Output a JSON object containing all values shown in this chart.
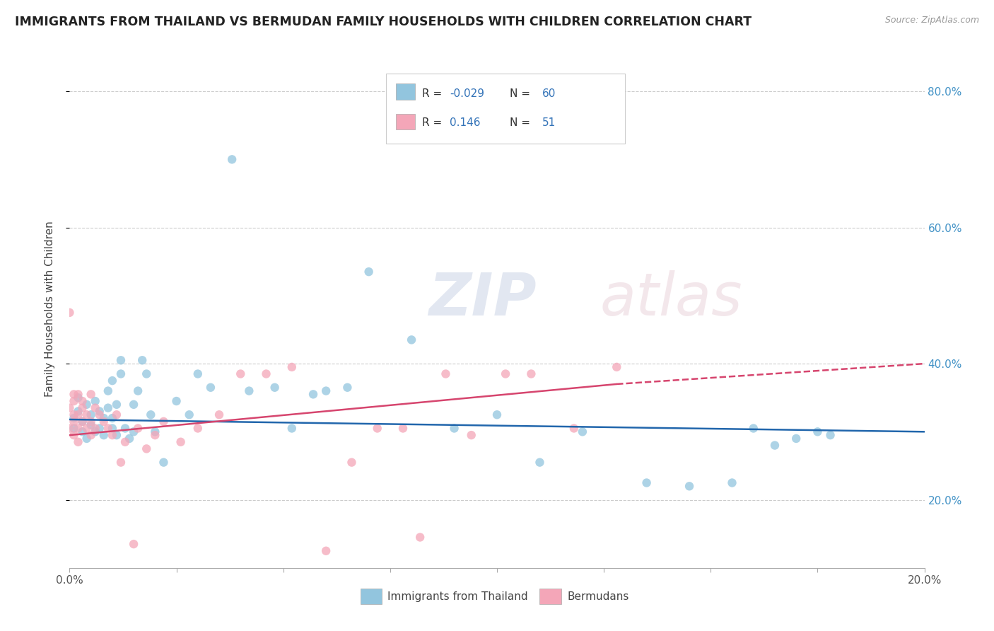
{
  "title": "IMMIGRANTS FROM THAILAND VS BERMUDAN FAMILY HOUSEHOLDS WITH CHILDREN CORRELATION CHART",
  "source_text": "Source: ZipAtlas.com",
  "ylabel": "Family Households with Children",
  "xlim": [
    0.0,
    0.2
  ],
  "ylim": [
    0.1,
    0.86
  ],
  "blue_color": "#92c5de",
  "pink_color": "#f4a6b8",
  "line_blue": "#2166ac",
  "line_pink": "#d6456e",
  "watermark_zip": "ZIP",
  "watermark_atlas": "atlas",
  "blue_scatter_x": [
    0.001,
    0.001,
    0.002,
    0.002,
    0.003,
    0.003,
    0.004,
    0.004,
    0.005,
    0.005,
    0.006,
    0.006,
    0.007,
    0.007,
    0.008,
    0.008,
    0.009,
    0.009,
    0.01,
    0.01,
    0.01,
    0.011,
    0.011,
    0.012,
    0.012,
    0.013,
    0.014,
    0.015,
    0.015,
    0.016,
    0.017,
    0.018,
    0.019,
    0.02,
    0.022,
    0.025,
    0.028,
    0.03,
    0.033,
    0.038,
    0.042,
    0.048,
    0.052,
    0.057,
    0.06,
    0.065,
    0.07,
    0.08,
    0.09,
    0.1,
    0.11,
    0.12,
    0.135,
    0.145,
    0.155,
    0.16,
    0.165,
    0.17,
    0.175,
    0.178
  ],
  "blue_scatter_y": [
    0.305,
    0.32,
    0.33,
    0.35,
    0.315,
    0.3,
    0.29,
    0.34,
    0.31,
    0.325,
    0.3,
    0.345,
    0.33,
    0.305,
    0.32,
    0.295,
    0.335,
    0.36,
    0.305,
    0.375,
    0.32,
    0.295,
    0.34,
    0.385,
    0.405,
    0.305,
    0.29,
    0.3,
    0.34,
    0.36,
    0.405,
    0.385,
    0.325,
    0.3,
    0.255,
    0.345,
    0.325,
    0.385,
    0.365,
    0.7,
    0.36,
    0.365,
    0.305,
    0.355,
    0.36,
    0.365,
    0.535,
    0.435,
    0.305,
    0.325,
    0.255,
    0.3,
    0.225,
    0.22,
    0.225,
    0.305,
    0.28,
    0.29,
    0.3,
    0.295
  ],
  "pink_scatter_x": [
    0.0,
    0.0,
    0.0,
    0.001,
    0.001,
    0.001,
    0.001,
    0.001,
    0.002,
    0.002,
    0.002,
    0.002,
    0.003,
    0.003,
    0.003,
    0.004,
    0.004,
    0.005,
    0.005,
    0.005,
    0.006,
    0.006,
    0.007,
    0.008,
    0.009,
    0.01,
    0.011,
    0.012,
    0.013,
    0.015,
    0.016,
    0.018,
    0.02,
    0.022,
    0.026,
    0.03,
    0.035,
    0.04,
    0.046,
    0.052,
    0.06,
    0.066,
    0.072,
    0.078,
    0.082,
    0.088,
    0.094,
    0.102,
    0.108,
    0.118,
    0.128
  ],
  "pink_scatter_y": [
    0.475,
    0.305,
    0.335,
    0.325,
    0.345,
    0.315,
    0.355,
    0.295,
    0.305,
    0.325,
    0.355,
    0.285,
    0.345,
    0.315,
    0.335,
    0.305,
    0.325,
    0.315,
    0.295,
    0.355,
    0.305,
    0.335,
    0.325,
    0.315,
    0.305,
    0.295,
    0.325,
    0.255,
    0.285,
    0.135,
    0.305,
    0.275,
    0.295,
    0.315,
    0.285,
    0.305,
    0.325,
    0.385,
    0.385,
    0.395,
    0.125,
    0.255,
    0.305,
    0.305,
    0.145,
    0.385,
    0.295,
    0.385,
    0.385,
    0.305,
    0.395
  ]
}
